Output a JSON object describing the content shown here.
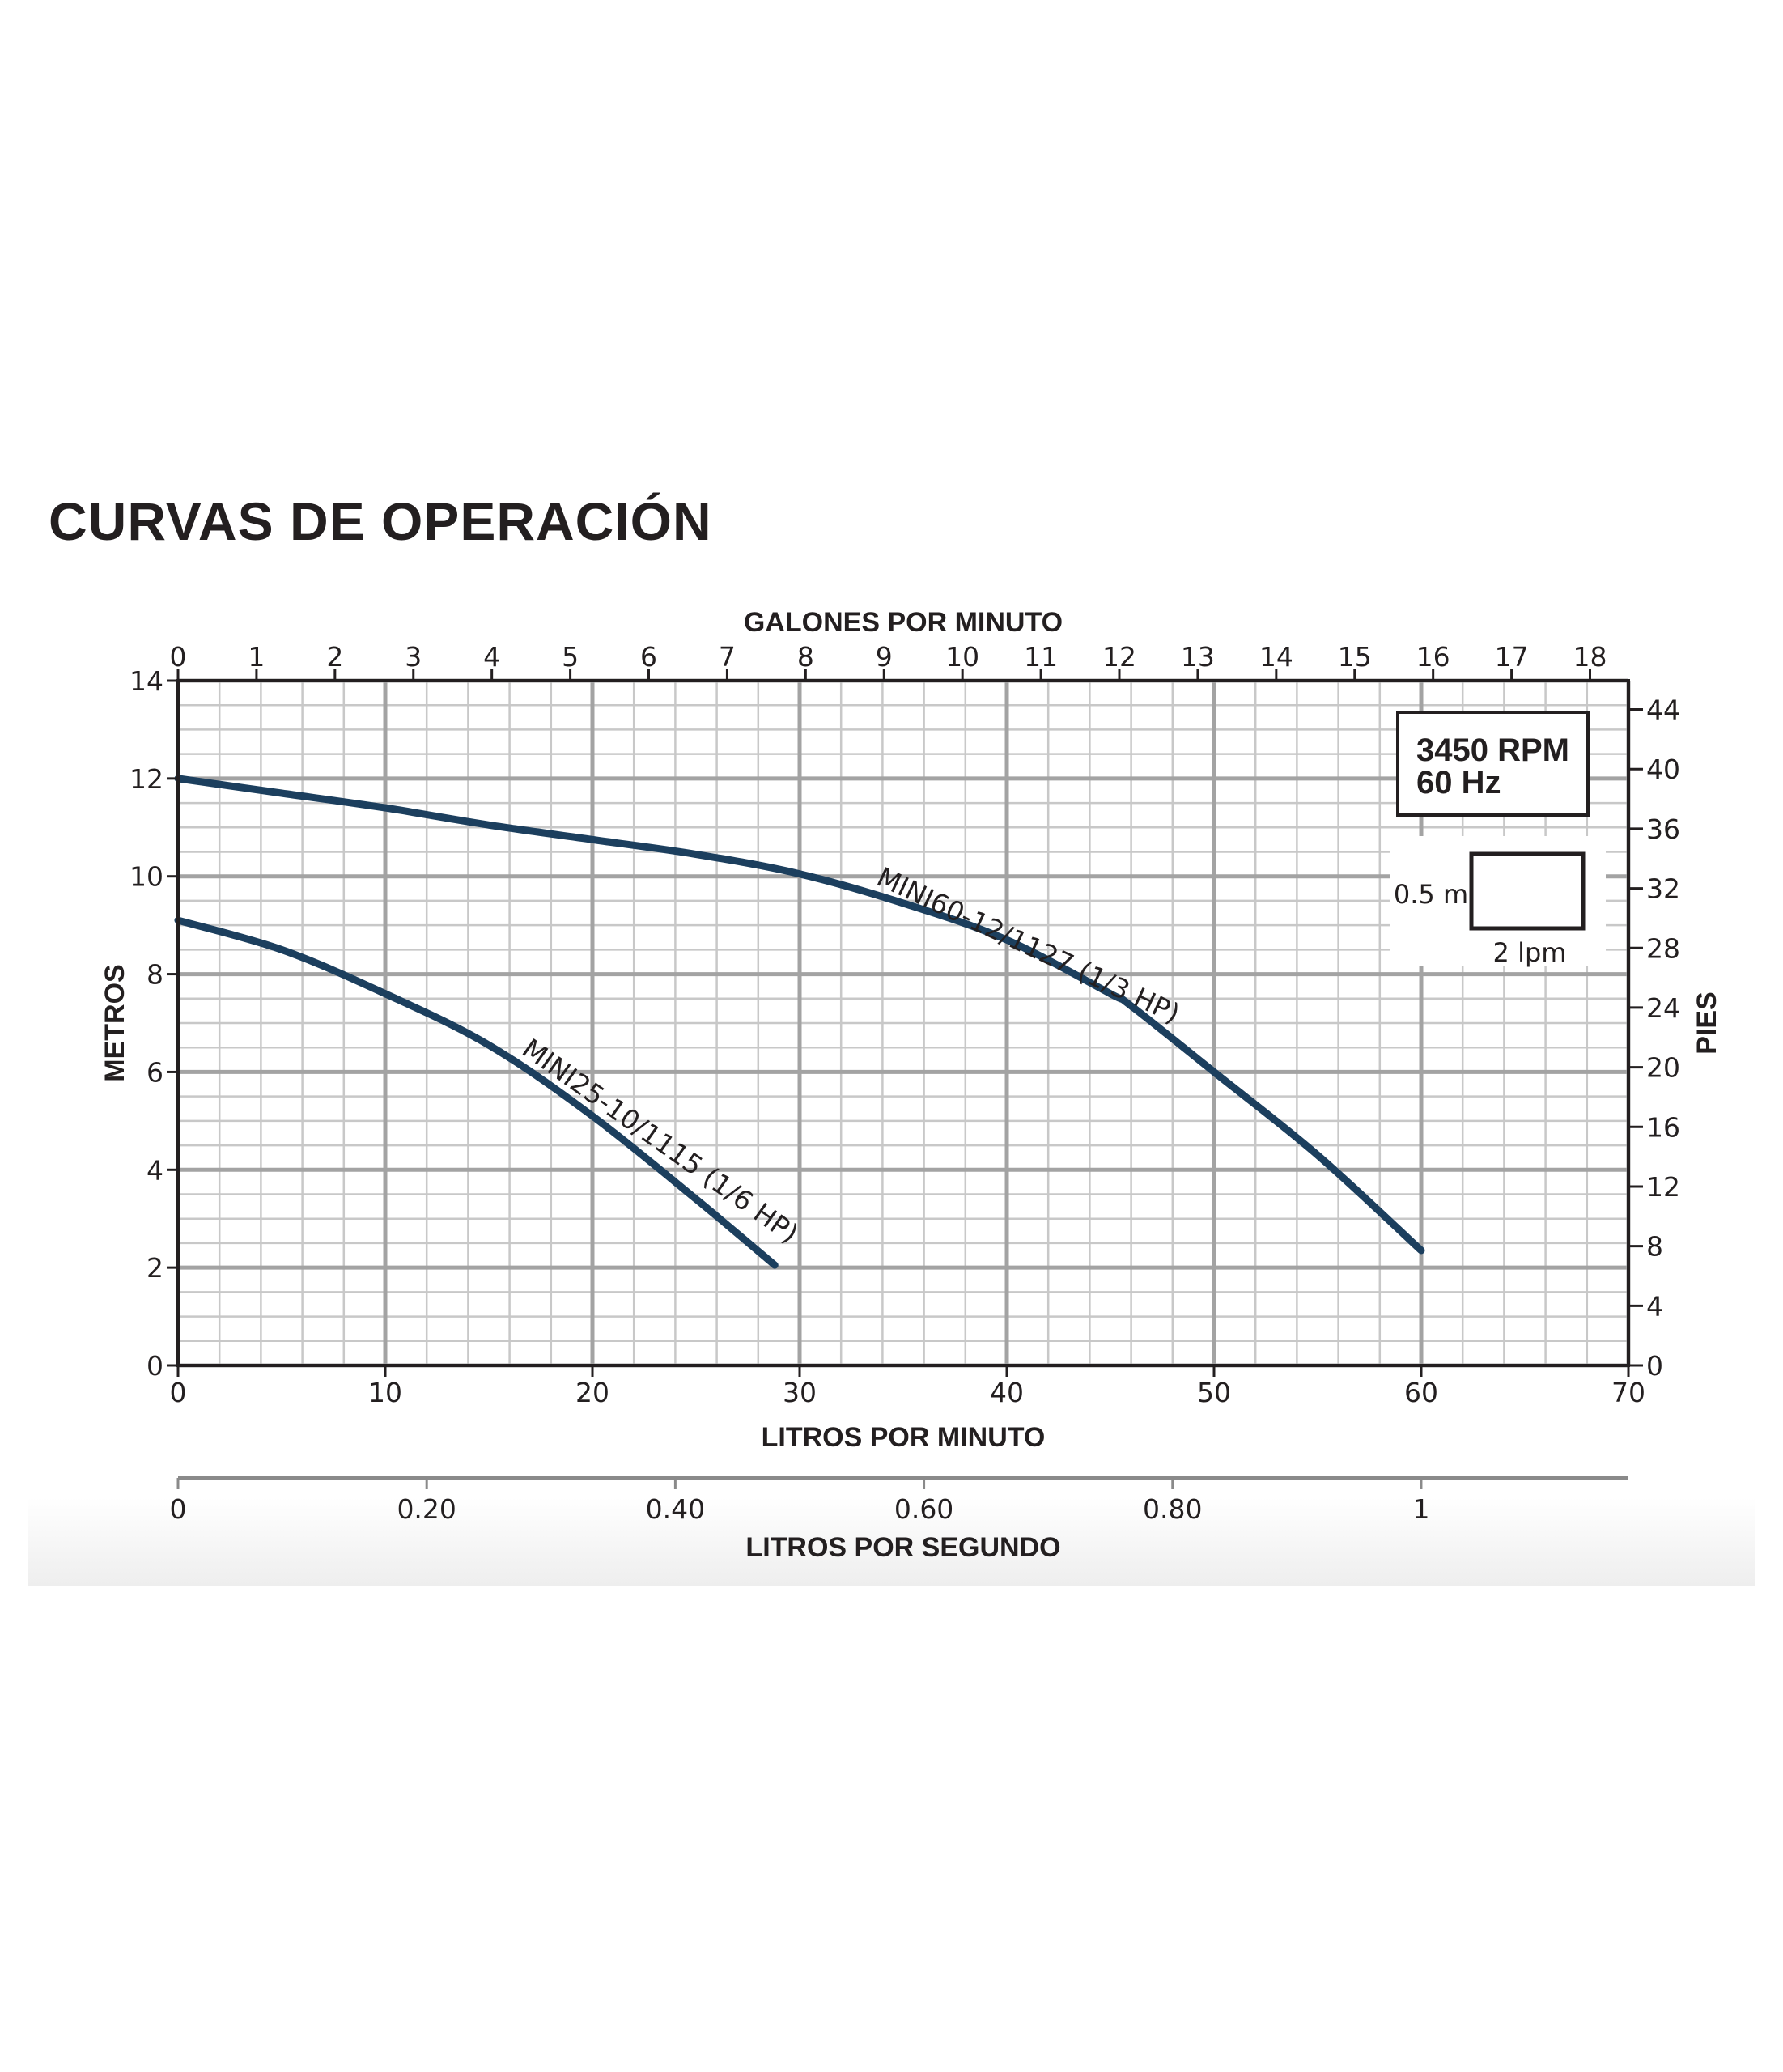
{
  "title": "CURVAS DE OPERACIÓN",
  "chart_data": {
    "type": "line",
    "x_bottom": {
      "label": "LITROS POR MINUTO",
      "range": [
        0,
        70
      ],
      "ticks": [
        "0",
        "10",
        "20",
        "30",
        "40",
        "50",
        "60",
        "70"
      ]
    },
    "x_top": {
      "label": "GALONES POR MINUTO",
      "range": [
        0,
        18.49
      ],
      "ticks": [
        "0",
        "1",
        "2",
        "3",
        "4",
        "5",
        "6",
        "7",
        "8",
        "9",
        "10",
        "11",
        "12",
        "13",
        "14",
        "15",
        "16",
        "17",
        "18"
      ]
    },
    "x_lps": {
      "label": "LITROS POR SEGUNDO",
      "range": [
        0,
        1.1667
      ],
      "ticks": [
        "0",
        "0.20",
        "0.40",
        "0.60",
        "0.80",
        "1"
      ]
    },
    "y_left": {
      "label": "METROS",
      "range": [
        0,
        14
      ],
      "ticks": [
        "0",
        "2",
        "4",
        "6",
        "8",
        "10",
        "12",
        "14"
      ]
    },
    "y_right": {
      "label": "PIES",
      "range": [
        0,
        45.93
      ],
      "ticks": [
        "0",
        "4",
        "8",
        "12",
        "16",
        "20",
        "24",
        "28",
        "32",
        "36",
        "40",
        "44"
      ]
    },
    "grid": true,
    "series": [
      {
        "name": "MINI60-12/1127 (1/3 HP)",
        "color": "#1c3f5e",
        "x": [
          0,
          5,
          10,
          15,
          20,
          25,
          30,
          35,
          40,
          45,
          46,
          50,
          55,
          60
        ],
        "y": [
          12.0,
          11.7,
          11.4,
          11.05,
          10.75,
          10.45,
          10.05,
          9.45,
          8.7,
          7.6,
          7.35,
          6.0,
          4.3,
          2.35
        ]
      },
      {
        "name": "MINI25-10/1115 (1/6 HP)",
        "color": "#1c3f5e",
        "x": [
          0,
          5,
          10,
          15,
          20,
          25,
          28.8
        ],
        "y": [
          9.1,
          8.5,
          7.6,
          6.55,
          5.1,
          3.4,
          2.05
        ]
      }
    ],
    "annotations": {
      "rpm": "3450 RPM",
      "hz": "60 Hz",
      "scale_vertical": "0.5 m",
      "scale_horizontal": "2 lpm"
    }
  }
}
